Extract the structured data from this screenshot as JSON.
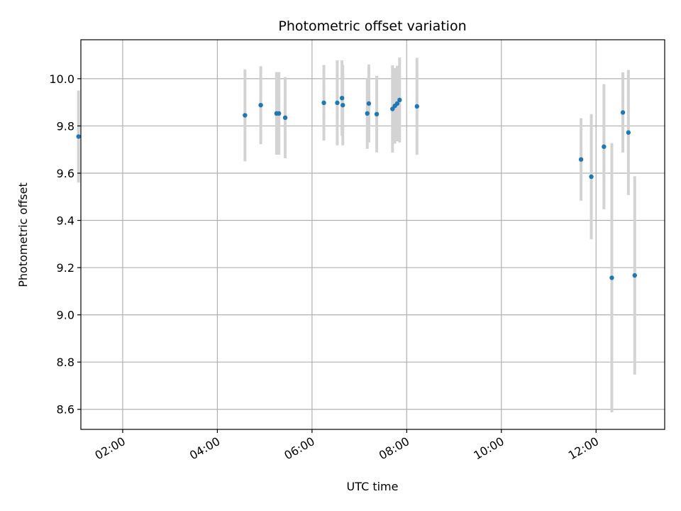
{
  "chart_data": {
    "type": "scatter",
    "title": "Photometric offset variation",
    "xlabel": "UTC time",
    "ylabel": "Photometric offset",
    "x_unit": "time",
    "xlim": [
      "01:07",
      "13:27"
    ],
    "ylim": [
      8.515,
      10.165
    ],
    "x_ticks": [
      "02:00",
      "04:00",
      "06:00",
      "08:00",
      "10:00",
      "12:00"
    ],
    "y_ticks": [
      8.6,
      8.8,
      9.0,
      9.2,
      9.4,
      9.6,
      9.8,
      10.0
    ],
    "y_tick_labels": [
      "8.6",
      "8.8",
      "9.0",
      "9.2",
      "9.4",
      "9.6",
      "9.8",
      "10.0"
    ],
    "grid": true,
    "marker_color": "#1f77b4",
    "errorbar_color": "#d3d3d3",
    "points": [
      {
        "x": "01:04",
        "y": 9.755,
        "err": 0.195
      },
      {
        "x": "04:35",
        "y": 9.845,
        "err": 0.195
      },
      {
        "x": "04:55",
        "y": 9.888,
        "err": 0.165
      },
      {
        "x": "05:15",
        "y": 9.853,
        "err": 0.175
      },
      {
        "x": "05:18",
        "y": 9.853,
        "err": 0.175
      },
      {
        "x": "05:26",
        "y": 9.835,
        "err": 0.172
      },
      {
        "x": "06:15",
        "y": 9.898,
        "err": 0.16
      },
      {
        "x": "06:32",
        "y": 9.898,
        "err": 0.18
      },
      {
        "x": "06:38",
        "y": 9.918,
        "err": 0.16
      },
      {
        "x": "06:39",
        "y": 9.888,
        "err": 0.17
      },
      {
        "x": "07:10",
        "y": 9.853,
        "err": 0.15
      },
      {
        "x": "07:12",
        "y": 9.895,
        "err": 0.165
      },
      {
        "x": "07:22",
        "y": 9.85,
        "err": 0.162
      },
      {
        "x": "07:42",
        "y": 9.872,
        "err": 0.185
      },
      {
        "x": "07:45",
        "y": 9.885,
        "err": 0.16
      },
      {
        "x": "07:48",
        "y": 9.895,
        "err": 0.16
      },
      {
        "x": "07:51",
        "y": 9.91,
        "err": 0.18
      },
      {
        "x": "08:13",
        "y": 9.883,
        "err": 0.205
      },
      {
        "x": "11:41",
        "y": 9.658,
        "err": 0.175
      },
      {
        "x": "11:54",
        "y": 9.585,
        "err": 0.265
      },
      {
        "x": "12:10",
        "y": 9.712,
        "err": 0.265
      },
      {
        "x": "12:20",
        "y": 9.157,
        "err": 0.57
      },
      {
        "x": "12:34",
        "y": 9.857,
        "err": 0.17
      },
      {
        "x": "12:41",
        "y": 9.772,
        "err": 0.265
      },
      {
        "x": "12:49",
        "y": 9.167,
        "err": 0.42
      }
    ]
  }
}
